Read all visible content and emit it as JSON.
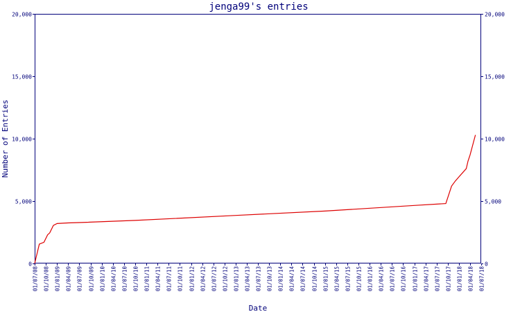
{
  "chart_data": {
    "type": "line",
    "title": "jenga99's entries",
    "xlabel": "Date",
    "ylabel": "Number of Entries",
    "ylim": [
      0,
      20000
    ],
    "yticks": [
      0,
      5000,
      10000,
      15000,
      20000
    ],
    "ytick_labels": [
      "0",
      "5,000",
      "10,000",
      "15,000",
      "20,000"
    ],
    "right_axis_ticks": true,
    "grid": false,
    "x_tick_labels": [
      "01/07/08",
      "01/10/08",
      "01/01/09",
      "01/04/09",
      "01/07/09",
      "01/10/09",
      "01/01/10",
      "01/04/10",
      "01/07/10",
      "01/10/10",
      "01/01/11",
      "01/04/11",
      "01/07/11",
      "01/10/11",
      "01/01/12",
      "01/04/12",
      "01/07/12",
      "01/10/12",
      "01/01/13",
      "01/04/13",
      "01/07/13",
      "01/10/13",
      "01/01/14",
      "01/04/14",
      "01/07/14",
      "01/10/14",
      "01/01/15",
      "01/04/15",
      "01/07/15",
      "01/10/15",
      "01/01/16",
      "01/04/16",
      "01/07/16",
      "01/10/16",
      "01/01/17",
      "01/04/17",
      "01/07/17",
      "01/10/17",
      "01/01/18",
      "01/04/18",
      "01/07/18"
    ],
    "series": [
      {
        "color": "#dd0000",
        "points": [
          [
            "01/07/08",
            0
          ],
          [
            "08/08/08",
            1550
          ],
          [
            "15/09/08",
            1700
          ],
          [
            "15/10/08",
            2300
          ],
          [
            "01/11/08",
            2450
          ],
          [
            "01/12/08",
            3050
          ],
          [
            "01/01/09",
            3200
          ],
          [
            "01/04/09",
            3250
          ],
          [
            "01/07/09",
            3280
          ],
          [
            "01/10/10",
            3450
          ],
          [
            "01/01/13",
            3850
          ],
          [
            "01/01/15",
            4200
          ],
          [
            "01/01/17",
            4650
          ],
          [
            "15/09/17",
            4800
          ],
          [
            "01/11/17",
            6200
          ],
          [
            "01/12/17",
            6600
          ],
          [
            "01/01/18",
            6950
          ],
          [
            "01/03/18",
            7600
          ],
          [
            "15/03/18",
            8200
          ],
          [
            "01/04/18",
            8700
          ],
          [
            "15/05/18",
            10300
          ]
        ]
      }
    ]
  }
}
